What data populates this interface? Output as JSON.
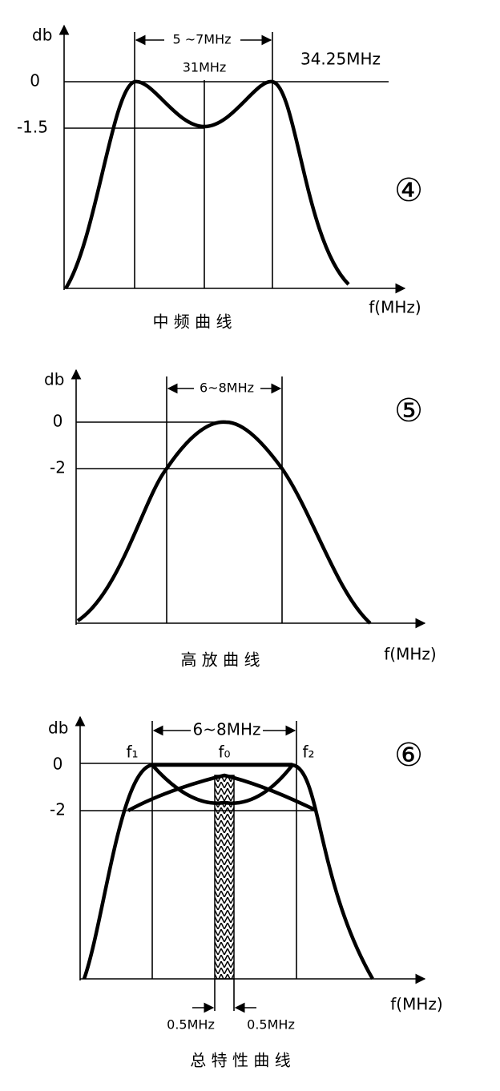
{
  "diagrams": [
    {
      "y_label": "db",
      "bandwidth": "5 ~7MHz",
      "center_freq": "31MHz",
      "peak_freq": "34.25MHz",
      "level_0": "0",
      "level_low": "-1.5",
      "number": "④",
      "x_label": "f(MHz)",
      "caption": "中 频 曲 线"
    },
    {
      "y_label": "db",
      "bandwidth": "6~8MHz",
      "level_0": "0",
      "level_low": "-2",
      "number": "⑤",
      "x_label": "f(MHz)",
      "caption": "高 放 曲 线"
    },
    {
      "y_label": "db",
      "bandwidth": "6~8MHz",
      "f1": "f₁",
      "f0": "f₀",
      "f2": "f₂",
      "level_0": "0",
      "level_low": "-2",
      "number": "⑥",
      "x_label": "f(MHz)",
      "offset_left": "0.5MHz",
      "offset_right": "0.5MHz",
      "caption": "总 特 性 曲 线"
    }
  ]
}
